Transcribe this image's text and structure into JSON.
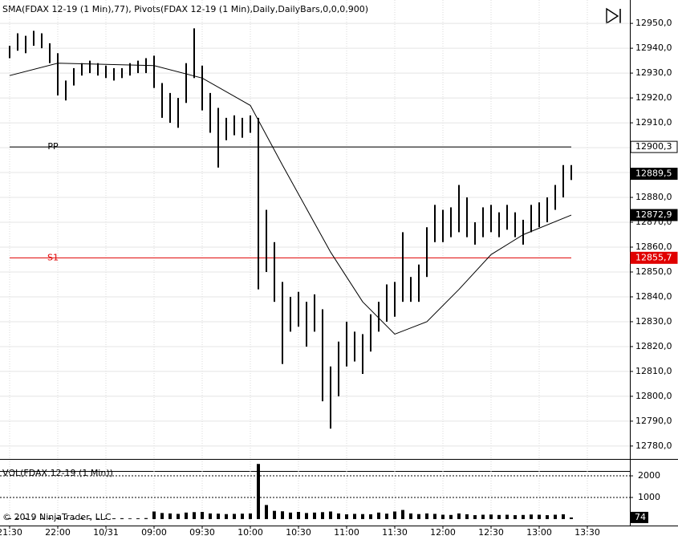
{
  "chart_data": [
    {
      "type": "range-bar",
      "title": "SMA(FDAX 12-19 (1 Min),77), Pivots(FDAX 12-19 (1 Min),Daily,DailyBars,0,0,0,900)",
      "color": "#000000",
      "x": [
        0,
        5,
        10,
        15,
        20,
        25,
        30,
        35,
        40,
        45,
        50,
        55,
        60,
        65,
        70,
        75,
        80,
        85,
        90,
        95,
        100,
        105,
        110,
        115,
        120,
        125,
        130,
        135,
        140,
        145,
        150,
        155,
        160,
        165,
        170,
        175,
        180,
        185,
        190,
        195,
        200,
        205,
        210,
        215,
        220,
        225,
        230,
        235,
        240,
        245,
        250,
        255,
        260,
        265,
        270,
        275,
        280,
        285,
        290,
        295,
        300,
        305,
        310,
        315,
        320,
        325,
        330,
        335,
        340,
        345,
        350
      ],
      "high": [
        12941,
        12946,
        12945,
        12947,
        12946,
        12942,
        12938,
        12927,
        12932,
        12934,
        12935,
        12934,
        12933,
        12932,
        12932,
        12934,
        12935,
        12936,
        12937,
        12926,
        12922,
        12920,
        12934,
        12948,
        12933,
        12922,
        12916,
        12912,
        12913,
        12912,
        12913,
        12912,
        12875,
        12862,
        12846,
        12840,
        12842,
        12838,
        12841,
        12835,
        12812,
        12822,
        12830,
        12826,
        12825,
        12833,
        12838,
        12845,
        12846,
        12866,
        12848,
        12853,
        12868,
        12877,
        12875,
        12876,
        12885,
        12880,
        12870,
        12876,
        12877,
        12874,
        12877,
        12874,
        12871,
        12877,
        12878,
        12880,
        12885,
        12893,
        12893
      ],
      "low": [
        12936,
        12939,
        12938,
        12941,
        12940,
        12934,
        12921,
        12919,
        12925,
        12929,
        12930,
        12929,
        12928,
        12927,
        12928,
        12929,
        12930,
        12930,
        12924,
        12912,
        12910,
        12908,
        12918,
        12928,
        12915,
        12906,
        12892,
        12903,
        12905,
        12904,
        12906,
        12843,
        12850,
        12838,
        12813,
        12826,
        12828,
        12820,
        12826,
        12798,
        12787,
        12800,
        12812,
        12814,
        12809,
        12818,
        12826,
        12830,
        12832,
        12838,
        12838,
        12838,
        12848,
        12862,
        12862,
        12864,
        12866,
        12864,
        12861,
        12864,
        12866,
        12864,
        12867,
        12864,
        12861,
        12866,
        12868,
        12870,
        12875,
        12880,
        12887
      ],
      "sma": {
        "color": "#000000",
        "x": [
          0,
          30,
          90,
          120,
          150,
          170,
          200,
          220,
          240,
          260,
          280,
          300,
          320,
          350
        ],
        "values": [
          12929,
          12934,
          12933,
          12928,
          12917,
          12893,
          12858,
          12838,
          12825,
          12830,
          12843,
          12857,
          12865,
          12872.9
        ]
      },
      "pivots": [
        {
          "label": "PP",
          "value": 12900.3,
          "value_label": "12900,3",
          "color": "#000000"
        },
        {
          "label": "S1",
          "value": 12855.7,
          "value_label": "12855,7",
          "color": "#e00000"
        }
      ],
      "price_markers": [
        {
          "value": 12889.5,
          "label": "12889,5"
        },
        {
          "value": 12872.9,
          "label": "12872,9"
        }
      ],
      "xlim": [
        -6,
        386.5
      ],
      "xticks": [
        {
          "value": 0,
          "label": "21:30"
        },
        {
          "value": 30,
          "label": "22:00"
        },
        {
          "value": 60,
          "label": "10/31"
        },
        {
          "value": 90,
          "label": "09:00"
        },
        {
          "value": 120,
          "label": "09:30"
        },
        {
          "value": 150,
          "label": "10:00"
        },
        {
          "value": 180,
          "label": "10:30"
        },
        {
          "value": 210,
          "label": "11:00"
        },
        {
          "value": 240,
          "label": "11:30"
        },
        {
          "value": 270,
          "label": "12:00"
        },
        {
          "value": 300,
          "label": "12:30"
        },
        {
          "value": 330,
          "label": "13:00"
        },
        {
          "value": 360,
          "label": "13:30"
        }
      ],
      "ylim": [
        12774.8,
        12959.4
      ],
      "yticks": [
        {
          "value": 12780,
          "label": "12780,0"
        },
        {
          "value": 12790,
          "label": "12790,0"
        },
        {
          "value": 12800,
          "label": "12800,0"
        },
        {
          "value": 12810,
          "label": "12810,0"
        },
        {
          "value": 12820,
          "label": "12820,0"
        },
        {
          "value": 12830,
          "label": "12830,0"
        },
        {
          "value": 12840,
          "label": "12840,0"
        },
        {
          "value": 12850,
          "label": "12850,0"
        },
        {
          "value": 12860,
          "label": "12860,0"
        },
        {
          "value": 12870,
          "label": "12870,0"
        },
        {
          "value": 12880,
          "label": "12880,0"
        },
        {
          "value": 12890,
          "label": "12890,0"
        },
        {
          "value": 12900,
          "label": "12900,0"
        },
        {
          "value": 12910,
          "label": "12910,0"
        },
        {
          "value": 12920,
          "label": "12920,0"
        },
        {
          "value": 12930,
          "label": "12930,0"
        },
        {
          "value": 12940,
          "label": "12940,0"
        },
        {
          "value": 12950,
          "label": "12950,0"
        }
      ],
      "grid": true
    },
    {
      "type": "bar",
      "title": "VOL(FDAX 12-19 (1 Min))",
      "annotation": "© 2019 NinjaTrader, LLC",
      "color": "#000000",
      "values": [
        40,
        35,
        45,
        30,
        40,
        50,
        60,
        35,
        30,
        40,
        35,
        30,
        30,
        35,
        40,
        30,
        35,
        45,
        350,
        280,
        260,
        240,
        300,
        320,
        330,
        260,
        250,
        230,
        240,
        250,
        260,
        2550,
        650,
        380,
        360,
        300,
        330,
        280,
        300,
        320,
        350,
        260,
        220,
        240,
        230,
        220,
        300,
        250,
        350,
        420,
        260,
        230,
        260,
        240,
        200,
        190,
        260,
        220,
        180,
        200,
        210,
        190,
        200,
        180,
        190,
        210,
        200,
        180,
        200,
        220,
        74
      ],
      "ylim": [
        -300,
        2670
      ],
      "yticks": [
        1000,
        2000
      ],
      "grid": true
    }
  ]
}
